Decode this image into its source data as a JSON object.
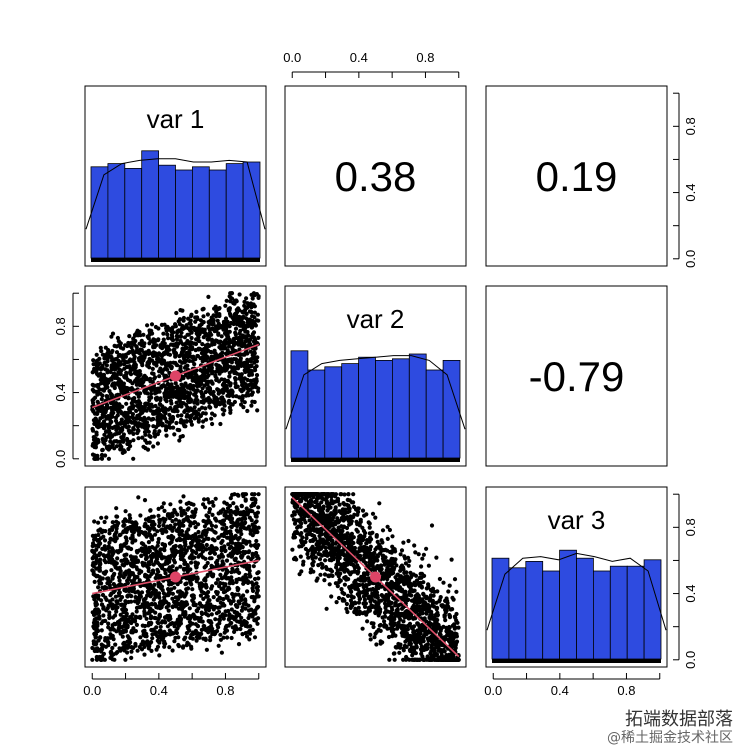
{
  "chart_data": {
    "type": "scatter-matrix",
    "variables": [
      "var 1",
      "var 2",
      "var 3"
    ],
    "tick_values": [
      0.0,
      0.4,
      0.8
    ],
    "tick_labels": [
      "0.0",
      "0.4",
      "0.8"
    ],
    "axis_range": [
      0,
      1
    ],
    "correlations": [
      {
        "row": 0,
        "col": 1,
        "label": "0.38",
        "value": 0.38
      },
      {
        "row": 0,
        "col": 2,
        "label": "0.19",
        "value": 0.19
      },
      {
        "row": 1,
        "col": 2,
        "label": "-0.79",
        "value": -0.79
      }
    ],
    "histograms": [
      {
        "variable": "var 1",
        "bin_edges": [
          0,
          0.1,
          0.2,
          0.3,
          0.4,
          0.5,
          0.6,
          0.7,
          0.8,
          0.9,
          1.0
        ],
        "heights": [
          0.57,
          0.59,
          0.56,
          0.67,
          0.58,
          0.55,
          0.57,
          0.55,
          0.59,
          0.6
        ],
        "density": [
          0.18,
          0.52,
          0.59,
          0.61,
          0.62,
          0.62,
          0.6,
          0.6,
          0.61,
          0.6,
          0.18
        ]
      },
      {
        "variable": "var 2",
        "bin_edges": [
          0,
          0.1,
          0.2,
          0.3,
          0.4,
          0.5,
          0.6,
          0.7,
          0.8,
          0.9,
          1.0
        ],
        "heights": [
          0.67,
          0.55,
          0.57,
          0.59,
          0.63,
          0.61,
          0.62,
          0.65,
          0.55,
          0.61
        ],
        "density": [
          0.18,
          0.52,
          0.59,
          0.61,
          0.62,
          0.63,
          0.64,
          0.64,
          0.61,
          0.52,
          0.18
        ]
      },
      {
        "variable": "var 3",
        "bin_edges": [
          0,
          0.1,
          0.2,
          0.3,
          0.4,
          0.5,
          0.6,
          0.7,
          0.8,
          0.9,
          1.0
        ],
        "heights": [
          0.63,
          0.57,
          0.61,
          0.55,
          0.68,
          0.63,
          0.55,
          0.58,
          0.58,
          0.62
        ],
        "density": [
          0.18,
          0.53,
          0.63,
          0.64,
          0.62,
          0.66,
          0.64,
          0.61,
          0.63,
          0.55,
          0.18
        ]
      }
    ],
    "scatter_panels": [
      {
        "row": 1,
        "col": 0,
        "x": "var 1",
        "y": "var 2",
        "correlation": 0.38,
        "mean_point": [
          0.5,
          0.5
        ],
        "fit_line": [
          [
            0,
            0.31
          ],
          [
            1,
            0.69
          ]
        ]
      },
      {
        "row": 2,
        "col": 0,
        "x": "var 1",
        "y": "var 3",
        "correlation": 0.19,
        "mean_point": [
          0.5,
          0.5
        ],
        "fit_line": [
          [
            0,
            0.4
          ],
          [
            1,
            0.6
          ]
        ]
      },
      {
        "row": 2,
        "col": 1,
        "x": "var 2",
        "y": "var 3",
        "correlation": -0.79,
        "mean_point": [
          0.5,
          0.5
        ],
        "fit_line": [
          [
            0,
            0.98
          ],
          [
            1,
            0.02
          ]
        ]
      }
    ],
    "points_per_panel": 2000,
    "colors": {
      "histogram_fill": "#2E4BE0",
      "fit_line": "#E0506A",
      "mean_point": "#DD4466",
      "points": "#000000",
      "frame": "#000000"
    }
  },
  "watermark": {
    "line1": "拓端数据部落",
    "line2": "@稀土掘金技术社区"
  }
}
